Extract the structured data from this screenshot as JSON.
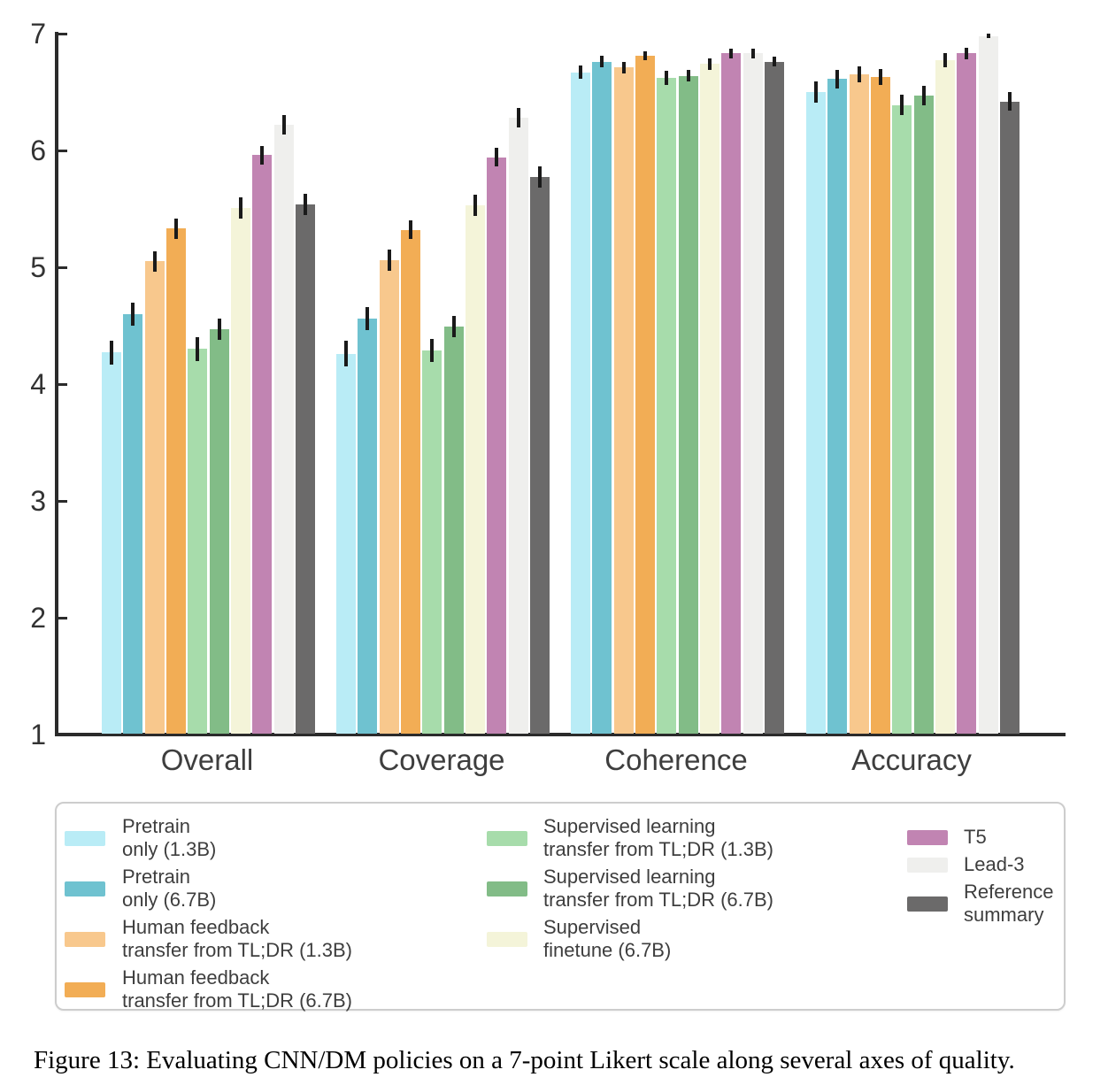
{
  "figure": {
    "caption": "Figure 13: Evaluating CNN/DM policies on a 7-point Likert scale along several axes of quality."
  },
  "chart_data": {
    "type": "bar",
    "title": "",
    "xlabel": "",
    "ylabel": "",
    "categories": [
      "Overall",
      "Coverage",
      "Coherence",
      "Accuracy"
    ],
    "ylim": [
      1,
      7
    ],
    "yticks": [
      1,
      2,
      3,
      4,
      5,
      6,
      7
    ],
    "grid": false,
    "error_bars": true,
    "legend_position": "below-chart",
    "axis_color": "#2b2b2b",
    "error_bar_color": "#1a1a1a",
    "series": [
      {
        "id": "pretrain-1-3b",
        "name": "Pretrain only (1.3B)",
        "legend_lines": [
          "Pretrain",
          "only (1.3B)"
        ],
        "color": "#b9ecf6",
        "values": [
          4.27,
          4.26,
          6.67,
          6.5
        ],
        "errors": [
          0.1,
          0.11,
          0.06,
          0.09
        ]
      },
      {
        "id": "pretrain-6-7b",
        "name": "Pretrain only (6.7B)",
        "legend_lines": [
          "Pretrain",
          "only (6.7B)"
        ],
        "color": "#6fc2d0",
        "values": [
          4.6,
          4.56,
          6.76,
          6.61
        ],
        "errors": [
          0.1,
          0.1,
          0.05,
          0.08
        ]
      },
      {
        "id": "human-feedback-1-3b",
        "name": "Human feedback transfer from TL;DR (1.3B)",
        "legend_lines": [
          "Human feedback",
          "transfer from TL;DR (1.3B)"
        ],
        "color": "#f8c88d",
        "values": [
          5.05,
          5.06,
          6.71,
          6.65
        ],
        "errors": [
          0.09,
          0.09,
          0.05,
          0.07
        ]
      },
      {
        "id": "human-feedback-6-7b",
        "name": "Human feedback transfer from TL;DR (6.7B)",
        "legend_lines": [
          "Human feedback",
          "transfer from TL;DR (6.7B)"
        ],
        "color": "#f2ad55",
        "values": [
          5.33,
          5.32,
          6.81,
          6.63
        ],
        "errors": [
          0.09,
          0.08,
          0.04,
          0.07
        ]
      },
      {
        "id": "supervised-transfer-1-3b",
        "name": "Supervised learning transfer from TL;DR (1.3B)",
        "legend_lines": [
          "Supervised learning",
          "transfer from TL;DR (1.3B)"
        ],
        "color": "#a7dcab",
        "values": [
          4.3,
          4.29,
          6.62,
          6.39
        ],
        "errors": [
          0.1,
          0.1,
          0.06,
          0.09
        ]
      },
      {
        "id": "supervised-transfer-6-7b",
        "name": "Supervised learning transfer from TL;DR (6.7B)",
        "legend_lines": [
          "Supervised learning",
          "transfer from TL;DR (6.7B)"
        ],
        "color": "#82bc87",
        "values": [
          4.47,
          4.49,
          6.64,
          6.47
        ],
        "errors": [
          0.09,
          0.09,
          0.05,
          0.08
        ]
      },
      {
        "id": "supervised-finetune-6-7b",
        "name": "Supervised finetune (6.7B)",
        "legend_lines": [
          "Supervised",
          "finetune (6.7B)"
        ],
        "color": "#f4f4d9",
        "values": [
          5.51,
          5.53,
          6.74,
          6.77
        ],
        "errors": [
          0.09,
          0.09,
          0.05,
          0.06
        ]
      },
      {
        "id": "t5",
        "name": "T5",
        "legend_lines": [
          "T5"
        ],
        "color": "#c184b2",
        "values": [
          5.96,
          5.94,
          6.83,
          6.83
        ],
        "errors": [
          0.08,
          0.08,
          0.04,
          0.05
        ]
      },
      {
        "id": "lead-3",
        "name": "Lead-3",
        "legend_lines": [
          "Lead-3"
        ],
        "color": "#efefed",
        "values": [
          6.22,
          6.28,
          6.83,
          6.98
        ],
        "errors": [
          0.08,
          0.08,
          0.04,
          0.02
        ]
      },
      {
        "id": "reference-summary",
        "name": "Reference summary",
        "legend_lines": [
          "Reference",
          "summary"
        ],
        "color": "#6b6a6a",
        "values": [
          5.54,
          5.77,
          6.76,
          6.42
        ],
        "errors": [
          0.09,
          0.09,
          0.04,
          0.08
        ]
      }
    ],
    "legend_columns": [
      [
        0,
        1,
        2,
        3
      ],
      [
        4,
        5,
        6
      ],
      [
        7,
        8,
        9
      ]
    ]
  }
}
